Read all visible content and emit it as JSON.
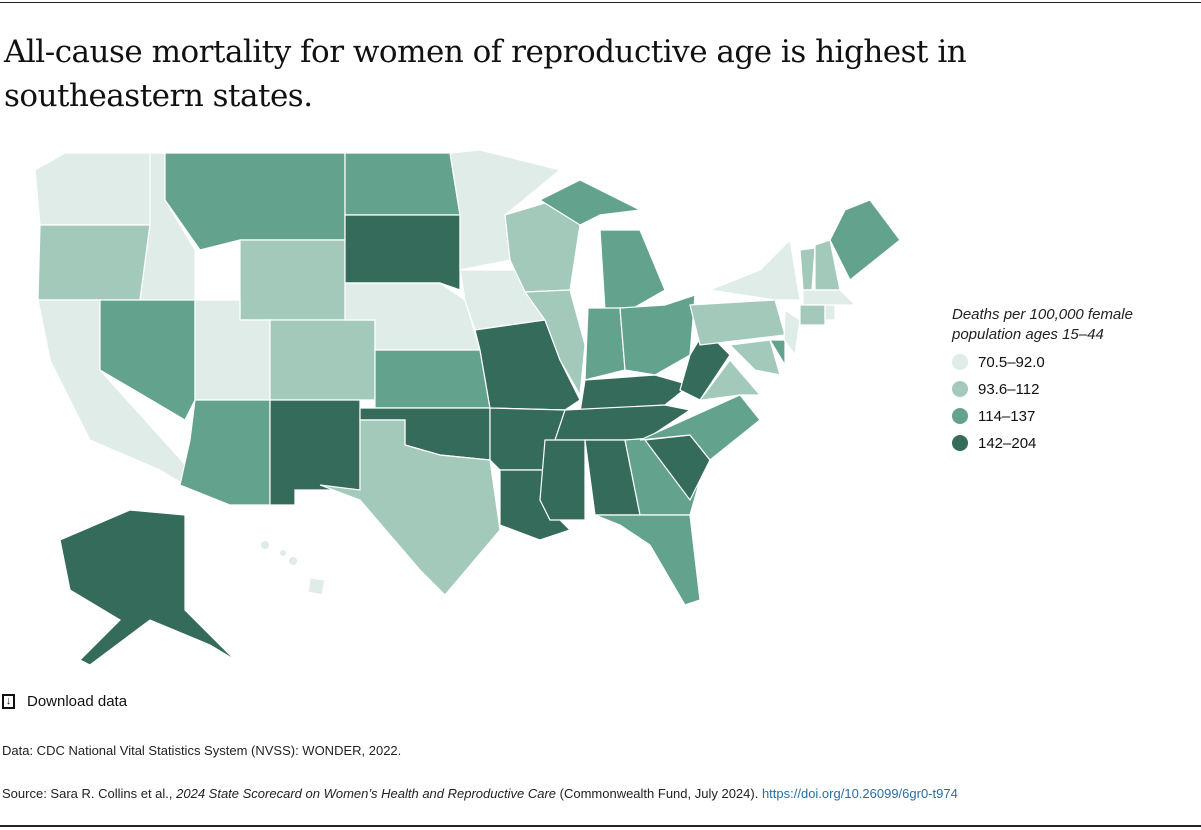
{
  "title": "All-cause mortality for women of reproductive age is highest in southeastern states.",
  "legend": {
    "title": "Deaths per 100,000 female population ages 15–44",
    "bins": [
      {
        "label": "70.5–92.0",
        "color": "#dfece7"
      },
      {
        "label": "93.6–112",
        "color": "#a3c9bb"
      },
      {
        "label": "114–137",
        "color": "#63a38d"
      },
      {
        "label": "142–204",
        "color": "#356b5a"
      }
    ]
  },
  "chart_data": {
    "type": "choropleth",
    "region": "United States",
    "bin_by_state": {
      "WA": 0,
      "ID": 0,
      "CA": 0,
      "UT": 0,
      "NE": 0,
      "MN": 0,
      "IA": 0,
      "NY": 0,
      "NJ": 0,
      "MA": 0,
      "RI": 0,
      "HI": 0,
      "OR": 1,
      "WY": 1,
      "CO": 1,
      "TX": 1,
      "WI": 1,
      "IL": 1,
      "PA": 1,
      "VA": 1,
      "MD": 1,
      "VT": 1,
      "NH": 1,
      "CT": 1,
      "MT": 2,
      "ND": 2,
      "NV": 2,
      "AZ": 2,
      "KS": 2,
      "MI": 2,
      "IN": 2,
      "OH": 2,
      "NC": 2,
      "GA": 2,
      "FL": 2,
      "ME": 2,
      "DE": 2,
      "SD": 3,
      "NM": 3,
      "OK": 3,
      "MO": 3,
      "AR": 3,
      "LA": 3,
      "MS": 3,
      "AL": 3,
      "TN": 3,
      "KY": 3,
      "WV": 3,
      "SC": 3,
      "AK": 3
    }
  },
  "download_label": "Download data",
  "data_note": "Data: CDC National Vital Statistics System (NVSS): WONDER, 2022.",
  "source": {
    "prefix": "Source: Sara R. Collins et al., ",
    "title": "2024 State Scorecard on Women’s Health and Reproductive Care",
    "suffix": " (Commonwealth Fund, July 2024). ",
    "link": "https://doi.org/10.26099/6gr0-t974"
  }
}
